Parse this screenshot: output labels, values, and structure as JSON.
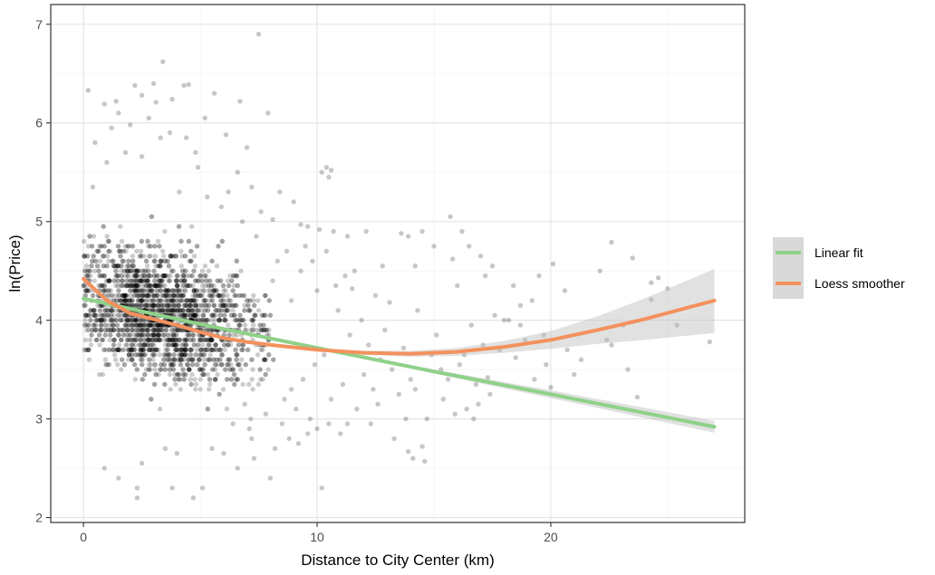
{
  "chart_data": {
    "type": "scatter",
    "title": "",
    "xlabel": "Distance to City Center (km)",
    "ylabel": "ln(Price)",
    "xlim": [
      -1.4,
      28.3
    ],
    "ylim": [
      1.95,
      7.2
    ],
    "x_ticks": [
      0,
      10,
      20
    ],
    "x_tick_labels": [
      "0",
      "10",
      "20"
    ],
    "y_ticks": [
      2,
      3,
      4,
      5,
      6,
      7
    ],
    "y_tick_labels": [
      "2",
      "3",
      "4",
      "5",
      "6",
      "7"
    ],
    "grid": true,
    "legend_position": "right",
    "colors": {
      "points": "#000000",
      "linear": "#8fd18a",
      "loess": "#f4915d",
      "ribbon": "#bdbdbd",
      "grid_major": "#e5e5e5",
      "grid_minor": "#f2f2f2"
    },
    "series": [
      {
        "name": "Linear fit",
        "type": "line",
        "x": [
          0,
          5,
          10,
          15,
          20,
          27
        ],
        "y": [
          4.22,
          3.96,
          3.72,
          3.48,
          3.25,
          2.92
        ],
        "lower": [
          4.2,
          3.95,
          3.71,
          3.46,
          3.21,
          2.86
        ],
        "upper": [
          4.24,
          3.97,
          3.73,
          3.5,
          3.29,
          2.98
        ]
      },
      {
        "name": "Loess smoother",
        "type": "line",
        "x": [
          0,
          1,
          2,
          3,
          4,
          5,
          6,
          7,
          8,
          10,
          12,
          14,
          16,
          18,
          20,
          22,
          24,
          27
        ],
        "y": [
          4.42,
          4.2,
          4.07,
          4.01,
          3.95,
          3.88,
          3.82,
          3.78,
          3.75,
          3.7,
          3.67,
          3.66,
          3.68,
          3.73,
          3.8,
          3.9,
          4.01,
          4.2
        ],
        "lower": [
          4.38,
          4.18,
          4.05,
          4.0,
          3.94,
          3.87,
          3.81,
          3.77,
          3.74,
          3.69,
          3.65,
          3.63,
          3.64,
          3.67,
          3.71,
          3.76,
          3.8,
          3.87
        ],
        "upper": [
          4.46,
          4.22,
          4.09,
          4.02,
          3.96,
          3.89,
          3.83,
          3.79,
          3.76,
          3.71,
          3.69,
          3.69,
          3.72,
          3.79,
          3.89,
          4.04,
          4.22,
          4.52
        ]
      }
    ],
    "points": [
      [
        7.5,
        6.9
      ],
      [
        3.4,
        6.62
      ],
      [
        2.2,
        6.38
      ],
      [
        3.0,
        6.4
      ],
      [
        4.3,
        6.38
      ],
      [
        4.5,
        6.39
      ],
      [
        0.2,
        6.33
      ],
      [
        5.6,
        6.3
      ],
      [
        2.5,
        6.28
      ],
      [
        6.7,
        6.22
      ],
      [
        1.4,
        6.22
      ],
      [
        3.1,
        6.21
      ],
      [
        0.9,
        6.19
      ],
      [
        3.8,
        6.24
      ],
      [
        7.9,
        6.1
      ],
      [
        5.2,
        6.05
      ],
      [
        2.0,
        5.98
      ],
      [
        1.2,
        5.95
      ],
      [
        4.4,
        5.85
      ],
      [
        6.1,
        5.88
      ],
      [
        7.0,
        5.75
      ],
      [
        10.4,
        5.55
      ],
      [
        10.2,
        5.5
      ],
      [
        10.6,
        5.52
      ],
      [
        10.5,
        5.45
      ],
      [
        2.5,
        5.66
      ],
      [
        4.9,
        5.55
      ],
      [
        6.6,
        5.5
      ],
      [
        7.2,
        5.35
      ],
      [
        8.4,
        5.3
      ],
      [
        9.0,
        5.2
      ],
      [
        7.6,
        5.1
      ],
      [
        8.1,
        5.02
      ],
      [
        9.3,
        4.97
      ],
      [
        9.6,
        4.95
      ],
      [
        10.1,
        4.92
      ],
      [
        10.7,
        4.9
      ],
      [
        11.3,
        4.85
      ],
      [
        12.1,
        4.9
      ],
      [
        13.6,
        4.88
      ],
      [
        14.5,
        4.9
      ],
      [
        15.7,
        5.05
      ],
      [
        16.2,
        4.9
      ],
      [
        13.9,
        4.85
      ],
      [
        15.0,
        4.75
      ],
      [
        16.5,
        4.75
      ],
      [
        17.0,
        4.65
      ],
      [
        15.8,
        4.62
      ],
      [
        17.5,
        4.55
      ],
      [
        18.4,
        4.35
      ],
      [
        19.5,
        4.45
      ],
      [
        20.1,
        4.57
      ],
      [
        22.1,
        4.5
      ],
      [
        22.6,
        4.79
      ],
      [
        23.5,
        4.63
      ],
      [
        24.6,
        4.43
      ],
      [
        24.3,
        4.38
      ],
      [
        25.0,
        4.32
      ],
      [
        24.3,
        4.21
      ],
      [
        20.6,
        4.3
      ],
      [
        19.2,
        4.2
      ],
      [
        18.7,
        4.15
      ],
      [
        17.6,
        4.05
      ],
      [
        18.0,
        4.0
      ],
      [
        18.7,
        3.95
      ],
      [
        16.6,
        3.95
      ],
      [
        14.3,
        4.1
      ],
      [
        13.1,
        4.18
      ],
      [
        12.5,
        4.25
      ],
      [
        11.5,
        4.32
      ],
      [
        11.2,
        4.45
      ],
      [
        10.8,
        4.35
      ],
      [
        11.6,
        4.5
      ],
      [
        12.8,
        4.55
      ],
      [
        14.2,
        4.55
      ],
      [
        16.0,
        4.35
      ],
      [
        17.2,
        4.45
      ],
      [
        18.2,
        4.0
      ],
      [
        19.7,
        3.85
      ],
      [
        22.6,
        3.75
      ],
      [
        23.1,
        3.95
      ],
      [
        17.8,
        3.7
      ],
      [
        18.5,
        3.62
      ],
      [
        19.3,
        3.4
      ],
      [
        20.0,
        3.32
      ],
      [
        21.0,
        3.45
      ],
      [
        23.3,
        3.5
      ],
      [
        23.7,
        3.22
      ],
      [
        17.3,
        3.42
      ],
      [
        16.8,
        3.35
      ],
      [
        15.3,
        3.5
      ],
      [
        14.2,
        3.3
      ],
      [
        13.5,
        3.25
      ],
      [
        12.6,
        3.15
      ],
      [
        11.7,
        3.1
      ],
      [
        12.3,
        2.95
      ],
      [
        13.8,
        3.0
      ],
      [
        14.7,
        3.0
      ],
      [
        16.7,
        3.0
      ],
      [
        16.4,
        3.1
      ],
      [
        15.4,
        3.2
      ],
      [
        13.3,
        2.8
      ],
      [
        14.5,
        2.72
      ],
      [
        13.9,
        2.67
      ],
      [
        14.1,
        2.6
      ],
      [
        14.6,
        2.57
      ],
      [
        11.0,
        2.85
      ],
      [
        10.5,
        2.95
      ],
      [
        9.6,
        2.85
      ],
      [
        8.8,
        2.8
      ],
      [
        8.2,
        2.7
      ],
      [
        7.3,
        2.6
      ],
      [
        8.0,
        2.4
      ],
      [
        10.2,
        2.3
      ],
      [
        6.6,
        2.5
      ],
      [
        5.1,
        2.3
      ],
      [
        4.7,
        2.2
      ],
      [
        3.8,
        2.3
      ],
      [
        2.3,
        2.3
      ],
      [
        2.3,
        2.2
      ],
      [
        1.5,
        2.4
      ],
      [
        0.9,
        2.5
      ],
      [
        2.5,
        2.55
      ],
      [
        3.5,
        2.7
      ],
      [
        4.0,
        2.65
      ],
      [
        5.5,
        2.7
      ],
      [
        6.0,
        2.65
      ],
      [
        7.2,
        2.8
      ],
      [
        26.8,
        3.78
      ],
      [
        25.4,
        3.95
      ],
      [
        22.4,
        3.8
      ],
      [
        21.3,
        3.6
      ],
      [
        20.7,
        3.7
      ],
      [
        19.8,
        3.55
      ],
      [
        18.9,
        3.8
      ],
      [
        17.1,
        3.75
      ],
      [
        16.3,
        3.65
      ],
      [
        15.1,
        3.85
      ],
      [
        13.7,
        3.72
      ],
      [
        12.9,
        3.9
      ],
      [
        12.2,
        3.75
      ],
      [
        11.9,
        4.0
      ],
      [
        11.4,
        3.85
      ],
      [
        10.9,
        4.1
      ],
      [
        10.3,
        3.65
      ],
      [
        9.9,
        3.55
      ],
      [
        9.4,
        3.4
      ],
      [
        8.9,
        3.3
      ],
      [
        8.6,
        3.2
      ],
      [
        9.1,
        3.1
      ],
      [
        9.7,
        3.0
      ],
      [
        10.6,
        3.2
      ],
      [
        11.1,
        3.35
      ],
      [
        12.0,
        3.45
      ],
      [
        12.7,
        3.6
      ],
      [
        13.2,
        3.5
      ],
      [
        14.0,
        3.4
      ],
      [
        14.9,
        3.65
      ],
      [
        15.6,
        3.4
      ],
      [
        16.1,
        3.55
      ],
      [
        17.4,
        3.25
      ],
      [
        16.9,
        3.15
      ],
      [
        15.9,
        3.05
      ],
      [
        12.4,
        3.3
      ],
      [
        11.3,
        2.95
      ],
      [
        10.0,
        2.9
      ],
      [
        9.2,
        2.75
      ],
      [
        8.5,
        2.95
      ],
      [
        7.8,
        3.05
      ],
      [
        7.1,
        2.9
      ],
      [
        6.4,
        2.95
      ],
      [
        6.9,
        3.15
      ],
      [
        8.3,
        4.6
      ],
      [
        8.7,
        4.7
      ],
      [
        9.5,
        4.75
      ],
      [
        9.8,
        4.6
      ],
      [
        10.4,
        4.7
      ],
      [
        7.4,
        4.85
      ],
      [
        6.8,
        5.0
      ],
      [
        5.9,
        5.15
      ],
      [
        5.3,
        5.25
      ],
      [
        4.1,
        5.3
      ],
      [
        4.8,
        5.7
      ],
      [
        3.3,
        5.85
      ],
      [
        1.8,
        5.7
      ],
      [
        1.5,
        6.1
      ],
      [
        2.8,
        6.05
      ],
      [
        0.5,
        5.8
      ],
      [
        1.0,
        5.6
      ],
      [
        0.4,
        5.35
      ],
      [
        3.7,
        5.9
      ],
      [
        6.2,
        5.3
      ],
      [
        8.1,
        4.4
      ],
      [
        8.9,
        4.2
      ],
      [
        9.3,
        4.5
      ],
      [
        10.0,
        4.3
      ]
    ],
    "dense_cloud": {
      "note": "bulk of observations concentrated at x 0-8, y 2.7-5.3",
      "count": 2600
    }
  }
}
